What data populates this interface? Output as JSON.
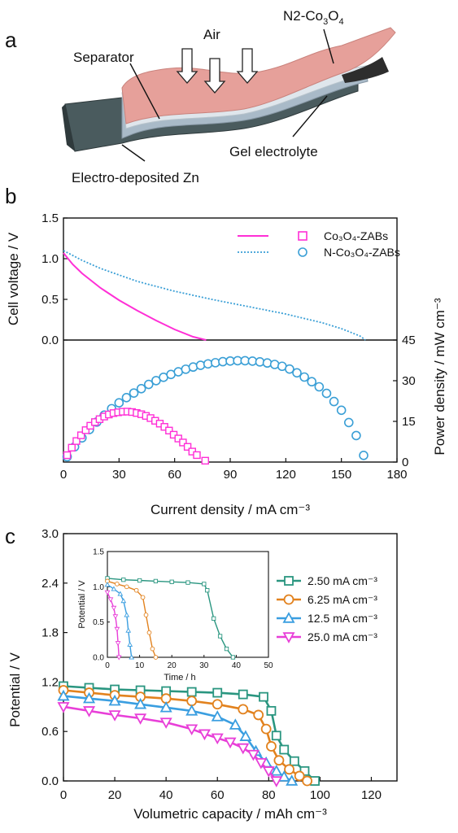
{
  "panels": {
    "a": {
      "label": "a",
      "annotations": {
        "air": "Air",
        "separator": "Separator",
        "cathode": "N2-Co",
        "cathode_sub1": "3",
        "cathode_mid": "O",
        "cathode_sub2": "4",
        "gel": "Gel electrolyte",
        "zn": "Electro-deposited Zn"
      }
    },
    "b": {
      "label": "b"
    },
    "c": {
      "label": "c"
    }
  },
  "colors": {
    "magenta": "#ff2fd6",
    "blue": "#3a9fd6",
    "teal": "#2a9680",
    "orange": "#e2821e",
    "lightblue": "#3a9ee0",
    "pink": "#e83fd8"
  },
  "chart_data": [
    {
      "id": "b-top",
      "type": "line",
      "title": "",
      "xlabel": "",
      "ylabel": "Cell voltage / V",
      "xlim": [
        0,
        180
      ],
      "ylim": [
        0,
        1.5
      ],
      "yticks": [
        "0.0",
        "0.5",
        "1.0",
        "1.5"
      ],
      "legend_position": "top-right",
      "series": [
        {
          "name": "Co₃O₄-ZABs",
          "x": [
            0,
            5,
            10,
            20,
            30,
            40,
            50,
            60,
            70,
            77
          ],
          "y": [
            1.07,
            0.93,
            0.82,
            0.64,
            0.49,
            0.36,
            0.24,
            0.13,
            0.04,
            0.0
          ]
        },
        {
          "name": "N-Co₃O₄-ZABs",
          "x": [
            0,
            10,
            20,
            30,
            40,
            60,
            80,
            100,
            120,
            140,
            150,
            160,
            163
          ],
          "y": [
            1.1,
            0.98,
            0.88,
            0.8,
            0.72,
            0.6,
            0.5,
            0.41,
            0.32,
            0.21,
            0.14,
            0.05,
            0.0
          ]
        }
      ]
    },
    {
      "id": "b-bottom",
      "type": "scatter",
      "title": "",
      "xlabel": "Current density / mA cm⁻³",
      "ylabel": "Power density / mW cm⁻³",
      "xlim": [
        0,
        180
      ],
      "ylim": [
        0,
        45
      ],
      "xticks": [
        "0",
        "30",
        "60",
        "90",
        "120",
        "150",
        "180"
      ],
      "yticks": [
        "0",
        "15",
        "30",
        "45"
      ],
      "series": [
        {
          "name": "Co₃O₄-ZABs",
          "peak_power": 15,
          "at_current": 38,
          "end_current": 77
        },
        {
          "name": "N-Co₃O₄-ZABs",
          "peak_power": 32,
          "at_current": 90,
          "end_current": 162
        }
      ]
    },
    {
      "id": "c-main",
      "type": "line",
      "title": "",
      "xlabel": "Volumetric capacity / mAh cm⁻³",
      "ylabel": "Potential / V",
      "xlim": [
        0,
        130
      ],
      "ylim": [
        0,
        3.0
      ],
      "xticks": [
        "0",
        "20",
        "40",
        "60",
        "80",
        "100",
        "120"
      ],
      "yticks": [
        "0.0",
        "0.6",
        "1.2",
        "1.8",
        "2.4",
        "3.0"
      ],
      "legend_position": "right",
      "series": [
        {
          "name": "2.50 mA cm⁻³",
          "x": [
            0,
            10,
            20,
            30,
            40,
            50,
            60,
            70,
            78,
            81,
            83,
            86,
            90,
            94,
            98
          ],
          "y": [
            1.15,
            1.13,
            1.11,
            1.1,
            1.09,
            1.08,
            1.07,
            1.05,
            1.02,
            0.85,
            0.55,
            0.38,
            0.24,
            0.12,
            0.0
          ]
        },
        {
          "name": "6.25 mA cm⁻³",
          "x": [
            0,
            10,
            20,
            30,
            40,
            50,
            60,
            70,
            76,
            79,
            81,
            84,
            88,
            92,
            95
          ],
          "y": [
            1.1,
            1.07,
            1.04,
            1.02,
            1.0,
            0.97,
            0.93,
            0.87,
            0.8,
            0.63,
            0.42,
            0.25,
            0.14,
            0.06,
            0.0
          ]
        },
        {
          "name": "12.5 mA cm⁻³",
          "x": [
            0,
            10,
            20,
            30,
            40,
            50,
            60,
            67,
            71,
            75,
            79,
            83,
            86,
            89
          ],
          "y": [
            1.03,
            1.0,
            0.97,
            0.93,
            0.89,
            0.85,
            0.78,
            0.68,
            0.54,
            0.36,
            0.22,
            0.12,
            0.05,
            0.0
          ]
        },
        {
          "name": "25.0 mA cm⁻³",
          "x": [
            0,
            10,
            20,
            30,
            40,
            50,
            55,
            60,
            65,
            70,
            74,
            77,
            80,
            83
          ],
          "y": [
            0.9,
            0.85,
            0.8,
            0.76,
            0.71,
            0.63,
            0.57,
            0.52,
            0.47,
            0.4,
            0.32,
            0.22,
            0.12,
            0.0
          ]
        }
      ]
    },
    {
      "id": "c-inset",
      "type": "line",
      "title": "",
      "xlabel": "Time / h",
      "ylabel": "Potential / V",
      "xlim": [
        0,
        50
      ],
      "ylim": [
        0,
        1.5
      ],
      "xticks": [
        "0",
        "10",
        "20",
        "30",
        "40",
        "50"
      ],
      "yticks": [
        "0.0",
        "0.5",
        "1.0",
        "1.5"
      ],
      "series": [
        {
          "name": "2.50 mA cm⁻³",
          "x": [
            0,
            5,
            10,
            15,
            20,
            25,
            30,
            31,
            33,
            35,
            37,
            39
          ],
          "y": [
            1.12,
            1.1,
            1.09,
            1.08,
            1.07,
            1.06,
            1.04,
            0.95,
            0.55,
            0.3,
            0.12,
            0.0
          ]
        },
        {
          "name": "6.25 mA cm⁻³",
          "x": [
            0,
            3,
            6,
            9,
            11,
            12,
            13,
            14,
            15
          ],
          "y": [
            1.08,
            1.04,
            1.0,
            0.95,
            0.85,
            0.6,
            0.35,
            0.12,
            0.0
          ]
        },
        {
          "name": "12.5 mA cm⁻³",
          "x": [
            0,
            2,
            4,
            5,
            6,
            6.5,
            7,
            7.5
          ],
          "y": [
            1.03,
            0.97,
            0.9,
            0.8,
            0.6,
            0.38,
            0.18,
            0.0
          ]
        },
        {
          "name": "25.0 mA cm⁻³",
          "x": [
            0,
            1,
            2,
            2.5,
            3,
            3.3,
            3.6
          ],
          "y": [
            0.92,
            0.82,
            0.7,
            0.58,
            0.4,
            0.2,
            0.0
          ]
        }
      ]
    }
  ]
}
